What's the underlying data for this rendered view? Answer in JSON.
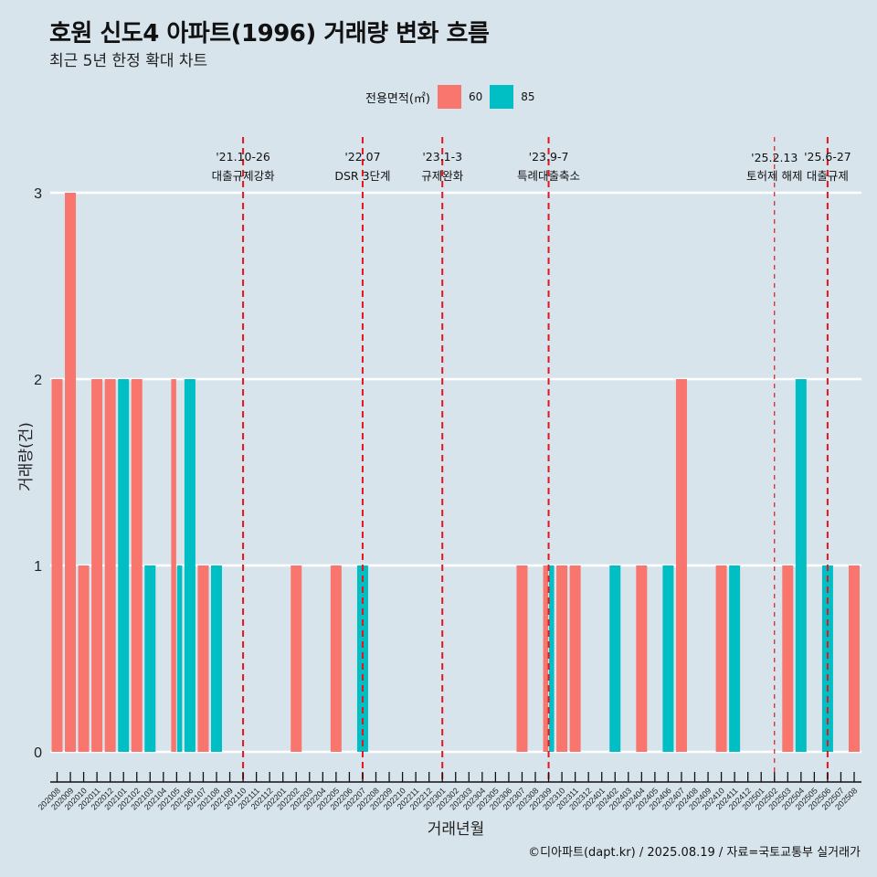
{
  "header": {
    "title": "호원 신도4 아파트(1996) 거래량 변화 흐름",
    "subtitle": "최근 5년 한정 확대 차트"
  },
  "legend": {
    "title": "전용면적(㎡)",
    "items": [
      {
        "label": "60",
        "color": "#f8766d"
      },
      {
        "label": "85",
        "color": "#00bfc4"
      }
    ]
  },
  "caption": "©디아파트(dapt.kr) / 2025.08.19 / 자료=국토교통부 실거래가",
  "chart_data": {
    "type": "bar",
    "title": "호원 신도4 아파트(1996) 거래량 변화 흐름",
    "subtitle": "최근 5년 한정 확대 차트",
    "xlabel": "거래년월",
    "ylabel": "거래량(건)",
    "ylim": [
      0,
      3
    ],
    "yticks": [
      0,
      1,
      2,
      3
    ],
    "grid": true,
    "legend_position": "top",
    "categories": [
      "202008",
      "202009",
      "202010",
      "202011",
      "202012",
      "202101",
      "202102",
      "202103",
      "202104",
      "202105",
      "202106",
      "202107",
      "202108",
      "202109",
      "202110",
      "202111",
      "202112",
      "202201",
      "202202",
      "202203",
      "202204",
      "202205",
      "202206",
      "202207",
      "202208",
      "202209",
      "202210",
      "202211",
      "202212",
      "202301",
      "202302",
      "202303",
      "202304",
      "202305",
      "202306",
      "202307",
      "202308",
      "202309",
      "202310",
      "202311",
      "202312",
      "202401",
      "202402",
      "202403",
      "202404",
      "202405",
      "202406",
      "202407",
      "202408",
      "202409",
      "202410",
      "202411",
      "202412",
      "202501",
      "202502",
      "202503",
      "202504",
      "202505",
      "202506",
      "202507",
      "202508"
    ],
    "series": [
      {
        "name": "60",
        "color": "#f8766d",
        "values": [
          2,
          3,
          1,
          2,
          2,
          0,
          2,
          0,
          0,
          2,
          0,
          1,
          0,
          0,
          0,
          0,
          0,
          0,
          1,
          0,
          0,
          1,
          0,
          0,
          0,
          0,
          0,
          0,
          0,
          0,
          0,
          0,
          0,
          0,
          0,
          1,
          0,
          1,
          1,
          1,
          0,
          0,
          0,
          0,
          1,
          0,
          0,
          2,
          0,
          0,
          1,
          0,
          0,
          0,
          0,
          1,
          0,
          0,
          0,
          0,
          1
        ]
      },
      {
        "name": "85",
        "color": "#00bfc4",
        "values": [
          0,
          0,
          0,
          0,
          0,
          2,
          0,
          1,
          0,
          1,
          2,
          0,
          1,
          0,
          0,
          0,
          0,
          0,
          0,
          0,
          0,
          0,
          0,
          1,
          0,
          0,
          0,
          0,
          0,
          0,
          0,
          0,
          0,
          0,
          0,
          0,
          0,
          1,
          0,
          0,
          0,
          0,
          1,
          0,
          0,
          0,
          1,
          0,
          0,
          0,
          0,
          1,
          0,
          0,
          0,
          0,
          2,
          0,
          1,
          0,
          0
        ]
      }
    ],
    "events": [
      {
        "month": "202110",
        "date": "'21.10-26",
        "label": "대출규제강화",
        "style": "thick"
      },
      {
        "month": "202207",
        "date": "'22.07",
        "label": "DSR 3단계",
        "style": "thick"
      },
      {
        "month": "202301",
        "date": "'23.1-3",
        "label": "규제완화",
        "style": "thick"
      },
      {
        "month": "202309",
        "date": "'23.9-7",
        "label": "특례대출축소",
        "style": "thick"
      },
      {
        "month": "202502",
        "date": "'25.2.13",
        "label": "토허제 해제",
        "style": "thin"
      },
      {
        "month": "202506",
        "date": "'25.6-27",
        "label": "대출규제",
        "style": "thick"
      }
    ]
  }
}
